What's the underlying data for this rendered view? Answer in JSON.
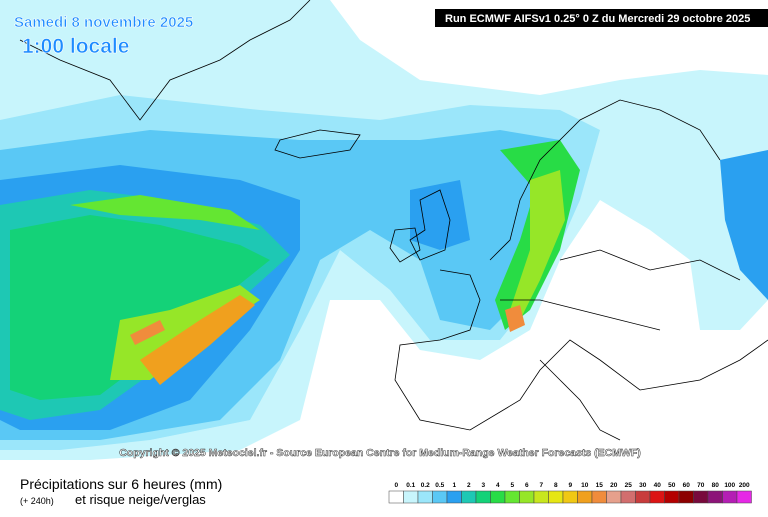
{
  "header": {
    "date": "Samedi 8 novembre 2025",
    "time": "1:00 locale",
    "run": "Run ECMWF AIFSv1 0.25° 0 Z du Mercredi 29 octobre 2025"
  },
  "copyright": "Copyright © 2025 Meteociel.fr - Source European Centre for Medium-Range Weather Forecasts (ECMWF)",
  "legend": {
    "title": "Précipitations sur 6 heures (mm)",
    "lead": "(+ 240h)",
    "subtitle": "et risque neige/verglas",
    "values": [
      0,
      0.1,
      0.2,
      0.5,
      1,
      2,
      3,
      4,
      5,
      6,
      7,
      8,
      9,
      10,
      15,
      20,
      25,
      30,
      40,
      50,
      60,
      70,
      80,
      100,
      200
    ],
    "colors": [
      "#ffffff",
      "#c8f5fc",
      "#9be6fa",
      "#5ac8f5",
      "#2aa0f0",
      "#1ec8b4",
      "#14d278",
      "#28dc46",
      "#64e632",
      "#96e628",
      "#c8e61e",
      "#e6e614",
      "#f0c814",
      "#f0a01e",
      "#f08c3c",
      "#e6a08c",
      "#d26e6e",
      "#c83c3c",
      "#dc1414",
      "#b40000",
      "#8c0000",
      "#780a3c",
      "#8c1478",
      "#b41eb4",
      "#e628e6"
    ]
  }
}
